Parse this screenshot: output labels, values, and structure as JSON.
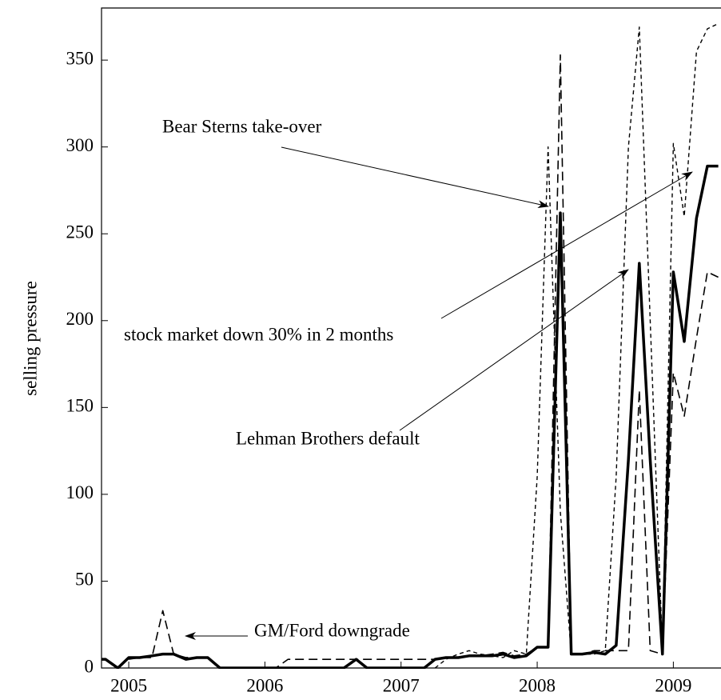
{
  "chart_data": {
    "type": "line",
    "ylabel": "selling pressure",
    "x": [
      2004.75,
      2004.83,
      2004.92,
      2005.0,
      2005.08,
      2005.17,
      2005.25,
      2005.33,
      2005.42,
      2005.5,
      2005.58,
      2005.67,
      2005.75,
      2005.83,
      2005.92,
      2006.0,
      2006.08,
      2006.17,
      2006.25,
      2006.33,
      2006.42,
      2006.5,
      2006.58,
      2006.67,
      2006.75,
      2006.83,
      2006.92,
      2007.0,
      2007.08,
      2007.17,
      2007.25,
      2007.33,
      2007.42,
      2007.5,
      2007.58,
      2007.67,
      2007.75,
      2007.83,
      2007.92,
      2008.0,
      2008.08,
      2008.17,
      2008.25,
      2008.33,
      2008.42,
      2008.5,
      2008.58,
      2008.67,
      2008.75,
      2008.83,
      2008.92,
      2009.0,
      2009.08,
      2009.17,
      2009.25,
      2009.33
    ],
    "series": [
      {
        "color": "#000000",
        "style": "solid",
        "values": [
          5,
          5,
          0,
          6,
          6,
          7,
          8,
          8,
          5,
          6,
          6,
          0,
          0,
          0,
          0,
          0,
          0,
          0,
          0,
          0,
          0,
          0,
          0,
          5,
          0,
          0,
          0,
          0,
          0,
          0,
          5,
          6,
          6,
          7,
          7,
          7,
          8,
          6,
          7,
          12,
          12,
          262,
          8,
          8,
          9,
          8,
          13,
          120,
          233,
          120,
          8,
          228,
          188,
          259,
          289,
          289
        ]
      },
      {
        "color": "#000000",
        "style": "long-dash",
        "values": [
          null,
          null,
          null,
          5,
          6,
          6,
          33,
          8,
          6,
          6,
          6,
          0,
          0,
          0,
          0,
          0,
          0,
          5,
          5,
          5,
          5,
          5,
          5,
          5,
          5,
          5,
          5,
          5,
          5,
          5,
          5,
          6,
          6,
          7,
          7,
          8,
          9,
          7,
          8,
          12,
          12,
          353,
          8,
          8,
          10,
          10,
          10,
          10,
          160,
          10,
          8,
          170,
          145,
          190,
          228,
          225
        ]
      },
      {
        "color": "#000000",
        "style": "short-dash",
        "values": [
          null,
          null,
          null,
          null,
          null,
          null,
          null,
          null,
          null,
          null,
          null,
          null,
          null,
          null,
          null,
          null,
          null,
          null,
          null,
          null,
          null,
          null,
          null,
          null,
          null,
          null,
          null,
          null,
          null,
          null,
          0,
          5,
          8,
          10,
          8,
          7,
          6,
          10,
          8,
          110,
          300,
          90,
          8,
          8,
          8,
          10,
          110,
          300,
          369,
          200,
          10,
          302,
          260,
          355,
          368,
          371
        ]
      }
    ],
    "xlim": [
      2004.8,
      2009.35
    ],
    "xticks": [
      2005,
      2006,
      2007,
      2008,
      2009
    ],
    "ylim": [
      0,
      380
    ],
    "yticks": [
      0,
      50,
      100,
      150,
      200,
      250,
      300,
      350
    ],
    "annotations": [
      "Bear Sterns take-over",
      "stock market down 30% in 2 months",
      "Lehman Brothers default",
      "GM/Ford downgrade"
    ]
  }
}
